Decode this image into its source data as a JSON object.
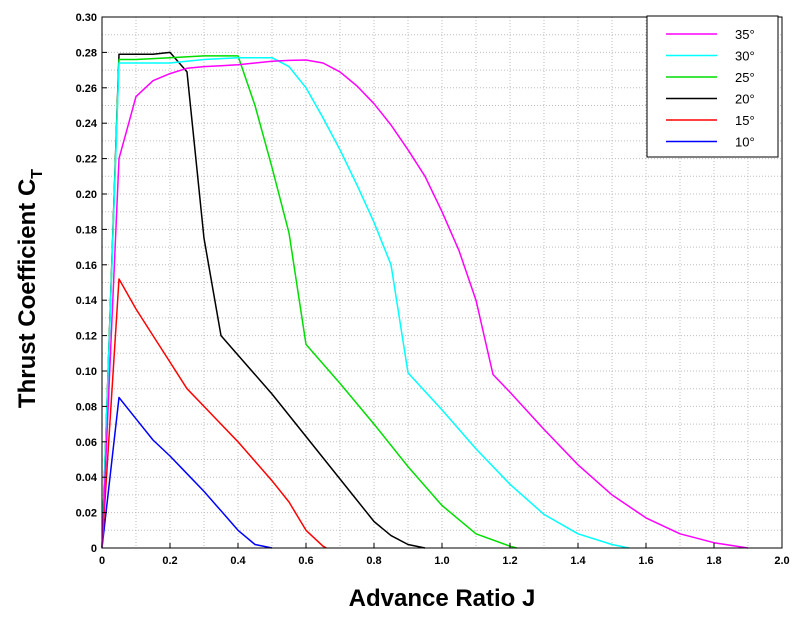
{
  "chart_data": {
    "type": "line",
    "title": "",
    "xlabel": "Advance Ratio J",
    "ylabel": "Thrust Coefficient C",
    "ylabel_subscript": "T",
    "xlim": [
      0,
      2.0
    ],
    "ylim": [
      0,
      0.3
    ],
    "x_ticks": [
      0,
      0.2,
      0.4,
      0.6,
      0.8,
      1.0,
      1.2,
      1.4,
      1.6,
      1.8,
      2.0
    ],
    "x_tick_labels": [
      "0",
      "0.2",
      "0.4",
      "0.6",
      "0.8",
      "1.0",
      "1.2",
      "1.4",
      "1.6",
      "1.8",
      "2.0"
    ],
    "y_ticks": [
      0,
      0.02,
      0.04,
      0.06,
      0.08,
      0.1,
      0.12,
      0.14,
      0.16,
      0.18,
      0.2,
      0.22,
      0.24,
      0.26,
      0.28,
      0.3
    ],
    "y_tick_labels": [
      "0",
      "0.02",
      "0.04",
      "0.06",
      "0.08",
      "0.10",
      "0.12",
      "0.14",
      "0.16",
      "0.18",
      "0.20",
      "0.22",
      "0.24",
      "0.26",
      "0.28",
      "0.30"
    ],
    "grid": true,
    "legend_position": "top-right",
    "series": [
      {
        "name": "35°",
        "color": "#ff00ff",
        "points": [
          [
            0,
            0
          ],
          [
            0.05,
            0.22
          ],
          [
            0.1,
            0.255
          ],
          [
            0.15,
            0.264
          ],
          [
            0.2,
            0.268
          ],
          [
            0.25,
            0.271
          ],
          [
            0.3,
            0.272
          ],
          [
            0.35,
            0.2725
          ],
          [
            0.4,
            0.273
          ],
          [
            0.45,
            0.274
          ],
          [
            0.5,
            0.275
          ],
          [
            0.55,
            0.2755
          ],
          [
            0.6,
            0.2757
          ],
          [
            0.65,
            0.274
          ],
          [
            0.7,
            0.269
          ],
          [
            0.75,
            0.261
          ],
          [
            0.8,
            0.251
          ],
          [
            0.85,
            0.239
          ],
          [
            0.9,
            0.225
          ],
          [
            0.95,
            0.21
          ],
          [
            1.0,
            0.19
          ],
          [
            1.05,
            0.168
          ],
          [
            1.1,
            0.14
          ],
          [
            1.15,
            0.098
          ],
          [
            1.2,
            0.088
          ],
          [
            1.3,
            0.067
          ],
          [
            1.4,
            0.047
          ],
          [
            1.5,
            0.03
          ],
          [
            1.6,
            0.017
          ],
          [
            1.7,
            0.008
          ],
          [
            1.8,
            0.003
          ],
          [
            1.9,
            0
          ]
        ]
      },
      {
        "name": "30°",
        "color": "#00ffff",
        "points": [
          [
            0,
            0
          ],
          [
            0.05,
            0.274
          ],
          [
            0.1,
            0.274
          ],
          [
            0.2,
            0.274
          ],
          [
            0.3,
            0.276
          ],
          [
            0.4,
            0.277
          ],
          [
            0.5,
            0.277
          ],
          [
            0.55,
            0.272
          ],
          [
            0.6,
            0.26
          ],
          [
            0.65,
            0.243
          ],
          [
            0.7,
            0.225
          ],
          [
            0.75,
            0.205
          ],
          [
            0.8,
            0.184
          ],
          [
            0.85,
            0.16
          ],
          [
            0.9,
            0.099
          ],
          [
            1.0,
            0.078
          ],
          [
            1.1,
            0.056
          ],
          [
            1.2,
            0.036
          ],
          [
            1.3,
            0.019
          ],
          [
            1.4,
            0.008
          ],
          [
            1.5,
            0.002
          ],
          [
            1.55,
            0
          ]
        ]
      },
      {
        "name": "25°",
        "color": "#00dd00",
        "points": [
          [
            0,
            0
          ],
          [
            0.05,
            0.276
          ],
          [
            0.1,
            0.276
          ],
          [
            0.2,
            0.277
          ],
          [
            0.3,
            0.278
          ],
          [
            0.4,
            0.278
          ],
          [
            0.45,
            0.25
          ],
          [
            0.5,
            0.215
          ],
          [
            0.55,
            0.178
          ],
          [
            0.6,
            0.115
          ],
          [
            0.7,
            0.093
          ],
          [
            0.8,
            0.07
          ],
          [
            0.9,
            0.046
          ],
          [
            1.0,
            0.024
          ],
          [
            1.1,
            0.008
          ],
          [
            1.2,
            0.001
          ],
          [
            1.22,
            0
          ]
        ]
      },
      {
        "name": "20°",
        "color": "#000000",
        "points": [
          [
            0,
            0
          ],
          [
            0.05,
            0.279
          ],
          [
            0.1,
            0.279
          ],
          [
            0.15,
            0.279
          ],
          [
            0.2,
            0.28
          ],
          [
            0.25,
            0.269
          ],
          [
            0.3,
            0.175
          ],
          [
            0.35,
            0.12
          ],
          [
            0.4,
            0.109
          ],
          [
            0.5,
            0.087
          ],
          [
            0.6,
            0.063
          ],
          [
            0.7,
            0.039
          ],
          [
            0.8,
            0.015
          ],
          [
            0.85,
            0.007
          ],
          [
            0.9,
            0.002
          ],
          [
            0.95,
            0
          ]
        ]
      },
      {
        "name": "15°",
        "color": "#ff0000",
        "points": [
          [
            0,
            0
          ],
          [
            0.05,
            0.152
          ],
          [
            0.1,
            0.135
          ],
          [
            0.15,
            0.12
          ],
          [
            0.2,
            0.105
          ],
          [
            0.25,
            0.09
          ],
          [
            0.3,
            0.08
          ],
          [
            0.35,
            0.07
          ],
          [
            0.4,
            0.06
          ],
          [
            0.45,
            0.049
          ],
          [
            0.5,
            0.038
          ],
          [
            0.55,
            0.026
          ],
          [
            0.6,
            0.01
          ],
          [
            0.65,
            0.001
          ],
          [
            0.66,
            0
          ]
        ]
      },
      {
        "name": "10°",
        "color": "#0000ff",
        "points": [
          [
            0,
            0
          ],
          [
            0.05,
            0.085
          ],
          [
            0.1,
            0.073
          ],
          [
            0.15,
            0.061
          ],
          [
            0.2,
            0.052
          ],
          [
            0.25,
            0.042
          ],
          [
            0.3,
            0.032
          ],
          [
            0.35,
            0.021
          ],
          [
            0.4,
            0.01
          ],
          [
            0.45,
            0.002
          ],
          [
            0.5,
            0
          ]
        ]
      }
    ]
  }
}
